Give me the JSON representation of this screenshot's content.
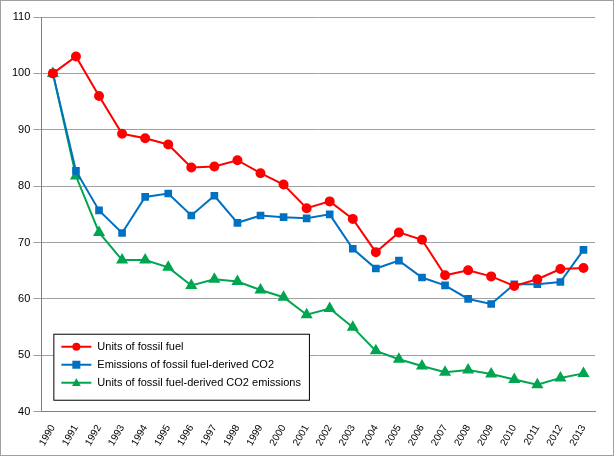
{
  "chart_data": {
    "type": "line",
    "categories": [
      "1990",
      "1991",
      "1992",
      "1993",
      "1994",
      "1995",
      "1996",
      "1997",
      "1998",
      "1999",
      "2000",
      "2001",
      "2002",
      "2003",
      "2004",
      "2005",
      "2006",
      "2007",
      "2008",
      "2009",
      "2010",
      "2011",
      "2012",
      "2013"
    ],
    "series": [
      {
        "name": "Units of fossil fuel",
        "color": "#ff0000",
        "marker": "circle",
        "values": [
          100,
          103,
          96,
          89.3,
          88.5,
          87.4,
          83.3,
          83.5,
          84.6,
          82.3,
          80.3,
          76.1,
          77.3,
          74.2,
          68.3,
          71.8,
          70.5,
          64.2,
          65.1,
          64,
          62.3,
          63.5,
          65.3,
          65.5
        ]
      },
      {
        "name": "Emissions of fossil fuel-derived CO2",
        "color": "#0070c0",
        "marker": "square",
        "values": [
          100,
          82.7,
          75.7,
          71.7,
          78.1,
          78.7,
          74.8,
          78.3,
          73.5,
          74.8,
          74.5,
          74.3,
          75,
          68.9,
          65.4,
          66.8,
          63.8,
          62.4,
          60,
          59.1,
          62.6,
          62.6,
          63,
          68.7
        ]
      },
      {
        "name": "Units of fossil fuel-derived CO2 emissions",
        "color": "#00a550",
        "marker": "triangle",
        "values": [
          100,
          81.8,
          71.8,
          66.9,
          66.9,
          65.6,
          62.4,
          63.5,
          63.1,
          61.6,
          60.3,
          57.2,
          58.3,
          55,
          50.8,
          49.3,
          48.1,
          47,
          47.4,
          46.7,
          45.7,
          44.8,
          46,
          46.8
        ]
      }
    ],
    "ylim": [
      40,
      110
    ],
    "yticks": [
      40,
      50,
      60,
      70,
      80,
      90,
      100,
      110
    ],
    "grid": true,
    "legend": "lower left"
  }
}
